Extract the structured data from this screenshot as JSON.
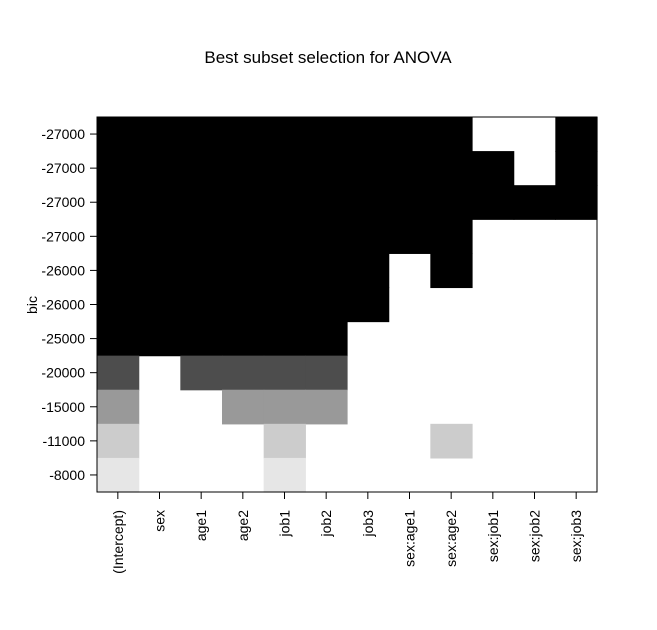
{
  "chart_data": {
    "type": "heatmap",
    "title": "Best subset selection for ANOVA",
    "ylabel": "bic",
    "xlabel": "",
    "columns": [
      "(Intercept)",
      "sex",
      "age1",
      "age2",
      "job1",
      "job2",
      "job3",
      "sex:age1",
      "sex:age2",
      "sex:job1",
      "sex:job2",
      "sex:job3"
    ],
    "rows": [
      "-27000",
      "-27000",
      "-27000",
      "-27000",
      "-26000",
      "-26000",
      "-25000",
      "-20000",
      "-15000",
      "-11000",
      "-8000"
    ],
    "colors": {
      "-27000": "#000000",
      "-26000": "#000000",
      "-25000": "#000000",
      "-20000": "#4d4d4d",
      "-15000": "#999999",
      "-11000": "#cccccc",
      "-8000": "#e6e6e6"
    },
    "matrix": [
      [
        1,
        1,
        1,
        1,
        1,
        1,
        1,
        1,
        1,
        0,
        0,
        1
      ],
      [
        1,
        1,
        1,
        1,
        1,
        1,
        1,
        1,
        1,
        1,
        0,
        1
      ],
      [
        1,
        1,
        1,
        1,
        1,
        1,
        1,
        1,
        1,
        1,
        1,
        1
      ],
      [
        1,
        1,
        1,
        1,
        1,
        1,
        1,
        1,
        1,
        0,
        0,
        0
      ],
      [
        1,
        1,
        1,
        1,
        1,
        1,
        1,
        0,
        1,
        0,
        0,
        0
      ],
      [
        1,
        1,
        1,
        1,
        1,
        1,
        1,
        0,
        0,
        0,
        0,
        0
      ],
      [
        1,
        1,
        1,
        1,
        1,
        1,
        0,
        0,
        0,
        0,
        0,
        0
      ],
      [
        1,
        0,
        1,
        1,
        1,
        1,
        0,
        0,
        0,
        0,
        0,
        0
      ],
      [
        1,
        0,
        0,
        1,
        1,
        1,
        0,
        0,
        0,
        0,
        0,
        0
      ],
      [
        1,
        0,
        0,
        0,
        1,
        0,
        0,
        0,
        1,
        0,
        0,
        0
      ],
      [
        1,
        0,
        0,
        0,
        1,
        0,
        0,
        0,
        0,
        0,
        0,
        0
      ]
    ],
    "grid": false,
    "legend": "none"
  }
}
